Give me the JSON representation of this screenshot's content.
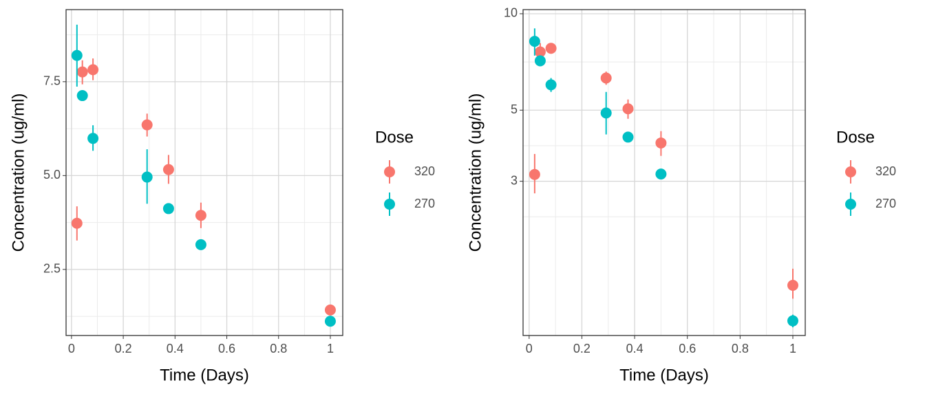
{
  "chart_data": [
    {
      "type": "scatter",
      "x_label": "Time (Days)",
      "y_label": "Concentration (ug/ml)",
      "legend_title": "Dose",
      "xlim": [
        -0.021,
        1.048
      ],
      "ylim": [
        0.74,
        9.42
      ],
      "xticks": [
        0,
        0.2,
        0.4,
        0.6,
        0.8,
        1
      ],
      "yticks": [
        2.5,
        {
          "value": 5,
          "label": "5.0"
        },
        7.5
      ],
      "log_y": false,
      "grid": true,
      "legend": "right",
      "series": [
        {
          "name": "320",
          "color": "#F8766D",
          "x": [
            0.021,
            0.042,
            0.083,
            0.292,
            0.375,
            0.5,
            1
          ],
          "values": [
            3.73,
            7.76,
            7.82,
            6.35,
            5.16,
            3.94,
            1.42
          ],
          "lower": [
            3.27,
            7.43,
            7.54,
            6.04,
            4.78,
            3.6,
            1.29
          ],
          "upper": [
            4.18,
            8.07,
            8.12,
            6.65,
            5.55,
            4.28,
            1.55
          ]
        },
        {
          "name": "270",
          "color": "#00BFC4",
          "x": [
            0.021,
            0.042,
            0.083,
            0.292,
            0.375,
            0.5,
            1
          ],
          "values": [
            8.2,
            7.13,
            5.99,
            4.96,
            4.12,
            3.16,
            1.12
          ],
          "lower": [
            7.37,
            7.05,
            5.66,
            4.25,
            4.05,
            3.09,
            1.05
          ],
          "upper": [
            9.02,
            7.22,
            6.34,
            5.7,
            4.19,
            3.23,
            1.19
          ]
        }
      ]
    },
    {
      "type": "scatter",
      "x_label": "Time (Days)",
      "y_label": "Concentration (ug/ml)",
      "legend_title": "Dose",
      "xlim": [
        -0.023,
        1.047
      ],
      "ylim": [
        0.99,
        10.3
      ],
      "xticks": [
        0,
        0.2,
        0.4,
        0.6,
        0.8,
        1
      ],
      "yticks": [
        3,
        5,
        10
      ],
      "log_y": true,
      "grid": true,
      "legend": "right",
      "series": [
        {
          "name": "320",
          "color": "#F8766D",
          "x": [
            0.021,
            0.042,
            0.083,
            0.292,
            0.375,
            0.5,
            1
          ],
          "values": [
            3.15,
            7.6,
            7.8,
            6.3,
            5.05,
            3.95,
            1.42
          ],
          "lower": [
            2.75,
            7.2,
            7.5,
            6.0,
            4.7,
            3.6,
            1.29
          ],
          "upper": [
            3.65,
            8.1,
            8.1,
            6.6,
            5.4,
            4.3,
            1.6
          ]
        },
        {
          "name": "270",
          "color": "#00BFC4",
          "x": [
            0.021,
            0.042,
            0.083,
            0.292,
            0.375,
            0.5,
            1
          ],
          "values": [
            8.2,
            7.13,
            6.0,
            4.9,
            4.12,
            3.16,
            1.1
          ],
          "lower": [
            7.4,
            6.9,
            5.7,
            4.2,
            4.0,
            3.08,
            1.05
          ],
          "upper": [
            9.0,
            7.4,
            6.3,
            5.7,
            4.22,
            3.24,
            1.15
          ]
        }
      ]
    }
  ]
}
